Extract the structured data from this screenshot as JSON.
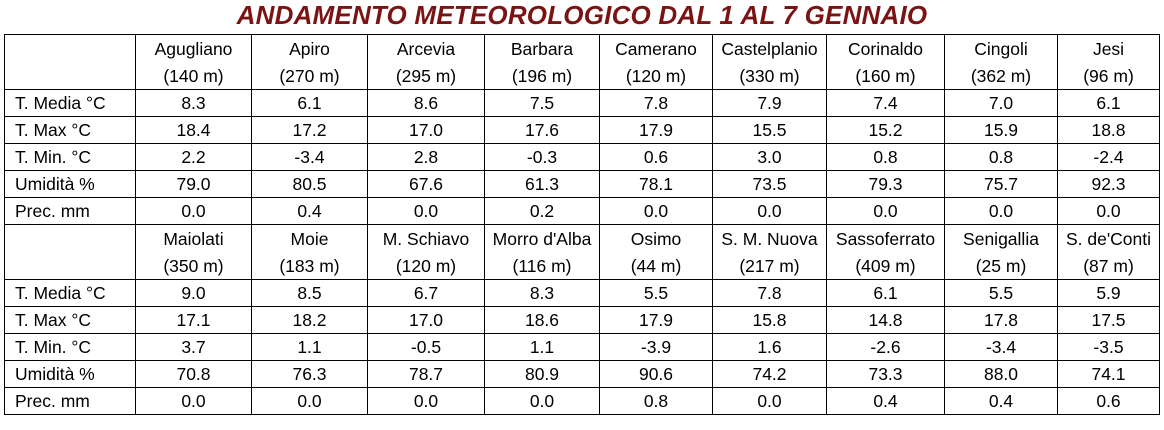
{
  "title": "ANDAMENTO METEOROLOGICO DAL 1 AL 7 GENNAIO",
  "colors": {
    "title": "#7a1414",
    "border": "#000000"
  },
  "row_labels": [
    "T. Media °C",
    "T. Max °C",
    "T. Min. °C",
    "Umidità %",
    "Prec. mm"
  ],
  "blocks": [
    {
      "stations": [
        {
          "name": "Agugliano",
          "alt": "(140 m)",
          "values": [
            "8.3",
            "18.4",
            "2.2",
            "79.0",
            "0.0"
          ]
        },
        {
          "name": "Apiro",
          "alt": "(270 m)",
          "values": [
            "6.1",
            "17.2",
            "-3.4",
            "80.5",
            "0.4"
          ]
        },
        {
          "name": "Arcevia",
          "alt": "(295 m)",
          "values": [
            "8.6",
            "17.0",
            "2.8",
            "67.6",
            "0.0"
          ]
        },
        {
          "name": "Barbara",
          "alt": "(196 m)",
          "values": [
            "7.5",
            "17.6",
            "-0.3",
            "61.3",
            "0.2"
          ]
        },
        {
          "name": "Camerano",
          "alt": "(120 m)",
          "values": [
            "7.8",
            "17.9",
            "0.6",
            "78.1",
            "0.0"
          ]
        },
        {
          "name": "Castelplanio",
          "alt": "(330 m)",
          "values": [
            "7.9",
            "15.5",
            "3.0",
            "73.5",
            "0.0"
          ]
        },
        {
          "name": "Corinaldo",
          "alt": "(160 m)",
          "values": [
            "7.4",
            "15.2",
            "0.8",
            "79.3",
            "0.0"
          ]
        },
        {
          "name": "Cingoli",
          "alt": "(362 m)",
          "values": [
            "7.0",
            "15.9",
            "0.8",
            "75.7",
            "0.0"
          ]
        },
        {
          "name": "Jesi",
          "alt": "(96 m)",
          "values": [
            "6.1",
            "18.8",
            "-2.4",
            "92.3",
            "0.0"
          ]
        }
      ]
    },
    {
      "stations": [
        {
          "name": "Maiolati",
          "alt": "(350 m)",
          "values": [
            "9.0",
            "17.1",
            "3.7",
            "70.8",
            "0.0"
          ]
        },
        {
          "name": "Moie",
          "alt": "(183 m)",
          "values": [
            "8.5",
            "18.2",
            "1.1",
            "76.3",
            "0.0"
          ]
        },
        {
          "name": "M. Schiavo",
          "alt": "(120 m)",
          "values": [
            "6.7",
            "17.0",
            "-0.5",
            "78.7",
            "0.0"
          ]
        },
        {
          "name": "Morro d'Alba",
          "alt": "(116 m)",
          "values": [
            "8.3",
            "18.6",
            "1.1",
            "80.9",
            "0.0"
          ]
        },
        {
          "name": "Osimo",
          "alt": "(44 m)",
          "values": [
            "5.5",
            "17.9",
            "-3.9",
            "90.6",
            "0.8"
          ]
        },
        {
          "name": "S. M. Nuova",
          "alt": "(217 m)",
          "values": [
            "7.8",
            "15.8",
            "1.6",
            "74.2",
            "0.0"
          ]
        },
        {
          "name": "Sassoferrato",
          "alt": "(409 m)",
          "values": [
            "6.1",
            "14.8",
            "-2.6",
            "73.3",
            "0.4"
          ]
        },
        {
          "name": "Senigallia",
          "alt": "(25 m)",
          "values": [
            "5.5",
            "17.8",
            "-3.4",
            "88.0",
            "0.4"
          ]
        },
        {
          "name": "S. de'Conti",
          "alt": "(87 m)",
          "values": [
            "5.9",
            "17.5",
            "-3.5",
            "74.1",
            "0.6"
          ]
        }
      ]
    }
  ]
}
